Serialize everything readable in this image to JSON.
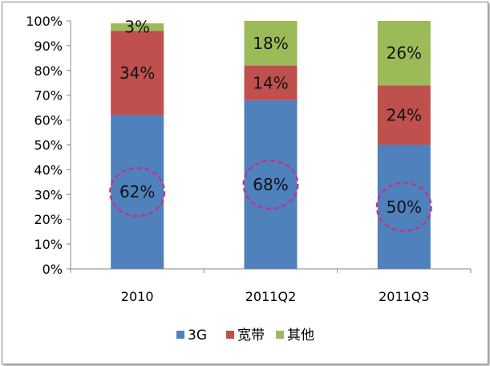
{
  "chart_data": {
    "type": "bar",
    "stacked": true,
    "percent": true,
    "categories": [
      "2010",
      "2011Q2",
      "2011Q3"
    ],
    "series": [
      {
        "name": "3G",
        "values": [
          62,
          68,
          50
        ],
        "labels": [
          "62%",
          "68%",
          "50%"
        ],
        "color": "#4F81BD"
      },
      {
        "name": "宽带",
        "values": [
          34,
          14,
          24
        ],
        "labels": [
          "34%",
          "14%",
          "24%"
        ],
        "color": "#C0504D"
      },
      {
        "name": "其他",
        "values": [
          3,
          18,
          26
        ],
        "labels": [
          "3%",
          "18%",
          "26%"
        ],
        "color": "#9BBB59"
      }
    ],
    "ylim": [
      0,
      100
    ],
    "yticks": [
      "0%",
      "10%",
      "20%",
      "30%",
      "40%",
      "50%",
      "60%",
      "70%",
      "80%",
      "90%",
      "100%"
    ],
    "legend": "bottom",
    "grid": false,
    "annotations": {
      "highlight": "3G",
      "style": "dashed-ellipse",
      "color": "#E0207A"
    }
  }
}
